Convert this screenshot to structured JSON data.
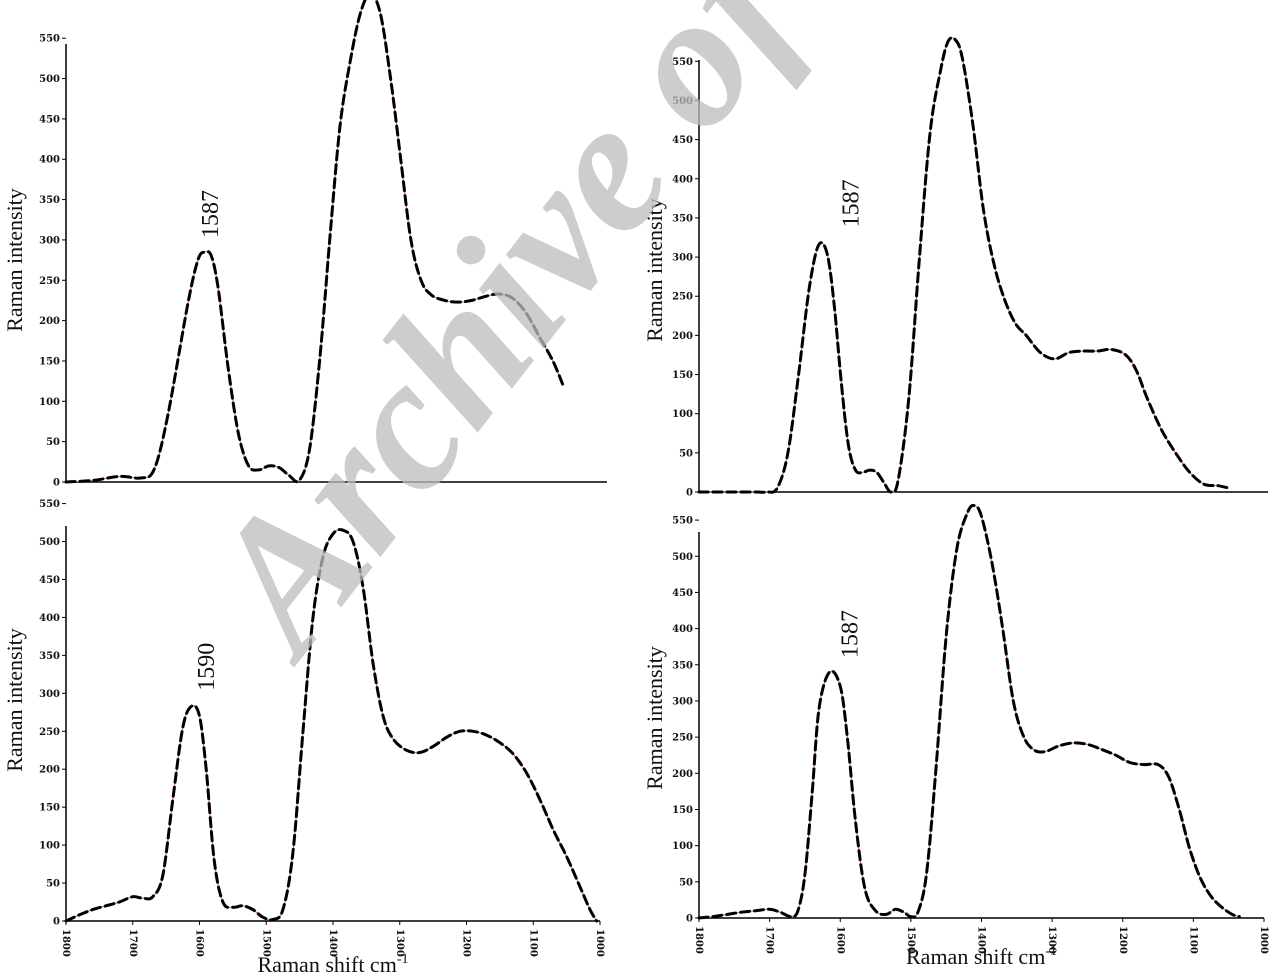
{
  "watermark": "Archive of SID",
  "colors": {
    "line": "#000000",
    "accent": "#e07b7b",
    "watermark": "#bdbdbd"
  },
  "chart_data": [
    {
      "type": "line",
      "panel": "top-left",
      "xlim": [
        1800,
        1000
      ],
      "ylim": [
        0,
        580
      ],
      "ylabel": "Raman intensity",
      "xlabel": "",
      "yticks": [
        0,
        50,
        100,
        150,
        200,
        250,
        300,
        350,
        400,
        450,
        500,
        550
      ],
      "xticks": [],
      "annotation": {
        "text": "1587",
        "x": 1587,
        "y": 285
      },
      "series": [
        {
          "points": [
            [
              1800,
              0
            ],
            [
              1760,
              2
            ],
            [
              1720,
              7
            ],
            [
              1690,
              5
            ],
            [
              1670,
              15
            ],
            [
              1650,
              80
            ],
            [
              1620,
              220
            ],
            [
              1605,
              275
            ],
            [
              1595,
              285
            ],
            [
              1585,
              280
            ],
            [
              1575,
              240
            ],
            [
              1560,
              140
            ],
            [
              1545,
              60
            ],
            [
              1530,
              20
            ],
            [
              1515,
              15
            ],
            [
              1500,
              20
            ],
            [
              1485,
              18
            ],
            [
              1470,
              8
            ],
            [
              1455,
              2
            ],
            [
              1440,
              40
            ],
            [
              1425,
              150
            ],
            [
              1410,
              300
            ],
            [
              1395,
              440
            ],
            [
              1380,
              520
            ],
            [
              1365,
              580
            ],
            [
              1350,
              605
            ],
            [
              1335,
              580
            ],
            [
              1320,
              500
            ],
            [
              1305,
              400
            ],
            [
              1290,
              300
            ],
            [
              1275,
              250
            ],
            [
              1260,
              232
            ],
            [
              1240,
              225
            ],
            [
              1220,
              223
            ],
            [
              1200,
              225
            ],
            [
              1180,
              230
            ],
            [
              1160,
              233
            ],
            [
              1140,
              228
            ],
            [
              1120,
              210
            ],
            [
              1100,
              180
            ],
            [
              1080,
              150
            ],
            [
              1065,
              120
            ]
          ]
        }
      ]
    },
    {
      "type": "line",
      "panel": "bottom-left",
      "xlim": [
        1800,
        1000
      ],
      "ylim": [
        0,
        560
      ],
      "ylabel": "Raman intensity",
      "xlabel": "Raman shift cm",
      "xlabel_sup": "-1",
      "yticks": [
        0,
        50,
        100,
        150,
        200,
        250,
        300,
        350,
        400,
        450,
        500,
        550
      ],
      "xticks": [
        "1800",
        "1700",
        "1600",
        "1500",
        "1400",
        "1300",
        "1200",
        "1100",
        "1000"
      ],
      "annotation": {
        "text": "1590",
        "x": 1590,
        "y": 285
      },
      "series": [
        {
          "points": [
            [
              1800,
              0
            ],
            [
              1780,
              8
            ],
            [
              1760,
              15
            ],
            [
              1740,
              20
            ],
            [
              1720,
              25
            ],
            [
              1700,
              32
            ],
            [
              1685,
              30
            ],
            [
              1670,
              32
            ],
            [
              1655,
              60
            ],
            [
              1640,
              160
            ],
            [
              1625,
              255
            ],
            [
              1612,
              283
            ],
            [
              1600,
              270
            ],
            [
              1590,
              200
            ],
            [
              1578,
              80
            ],
            [
              1565,
              25
            ],
            [
              1550,
              18
            ],
            [
              1535,
              20
            ],
            [
              1520,
              15
            ],
            [
              1505,
              5
            ],
            [
              1490,
              2
            ],
            [
              1475,
              15
            ],
            [
              1460,
              90
            ],
            [
              1445,
              250
            ],
            [
              1430,
              400
            ],
            [
              1415,
              480
            ],
            [
              1400,
              510
            ],
            [
              1385,
              515
            ],
            [
              1370,
              500
            ],
            [
              1355,
              440
            ],
            [
              1340,
              340
            ],
            [
              1325,
              270
            ],
            [
              1310,
              240
            ],
            [
              1290,
              225
            ],
            [
              1270,
              222
            ],
            [
              1250,
              230
            ],
            [
              1230,
              242
            ],
            [
              1210,
              250
            ],
            [
              1190,
              250
            ],
            [
              1170,
              245
            ],
            [
              1150,
              235
            ],
            [
              1130,
              220
            ],
            [
              1110,
              195
            ],
            [
              1090,
              160
            ],
            [
              1070,
              120
            ],
            [
              1050,
              85
            ],
            [
              1030,
              45
            ],
            [
              1015,
              15
            ],
            [
              1005,
              0
            ]
          ]
        }
      ]
    },
    {
      "type": "line",
      "panel": "top-right",
      "xlim": [
        1800,
        1000
      ],
      "ylim": [
        0,
        590
      ],
      "ylabel": "Raman intensity",
      "xlabel": "",
      "yticks": [
        0,
        50,
        100,
        150,
        200,
        250,
        300,
        350,
        400,
        450,
        500,
        550
      ],
      "xticks": [],
      "annotation": {
        "text": "1587",
        "x": 1587,
        "y": 320
      },
      "series": [
        {
          "points": [
            [
              1800,
              0
            ],
            [
              1780,
              0
            ],
            [
              1760,
              0
            ],
            [
              1740,
              0
            ],
            [
              1720,
              0
            ],
            [
              1705,
              0
            ],
            [
              1690,
              5
            ],
            [
              1675,
              50
            ],
            [
              1660,
              150
            ],
            [
              1645,
              260
            ],
            [
              1632,
              315
            ],
            [
              1620,
              305
            ],
            [
              1610,
              240
            ],
            [
              1600,
              140
            ],
            [
              1590,
              60
            ],
            [
              1580,
              28
            ],
            [
              1570,
              25
            ],
            [
              1560,
              28
            ],
            [
              1550,
              25
            ],
            [
              1540,
              12
            ],
            [
              1530,
              0
            ],
            [
              1520,
              15
            ],
            [
              1505,
              120
            ],
            [
              1490,
              300
            ],
            [
              1475,
              460
            ],
            [
              1460,
              540
            ],
            [
              1450,
              575
            ],
            [
              1440,
              578
            ],
            [
              1430,
              555
            ],
            [
              1415,
              470
            ],
            [
              1400,
              360
            ],
            [
              1385,
              290
            ],
            [
              1370,
              245
            ],
            [
              1355,
              215
            ],
            [
              1340,
              200
            ],
            [
              1320,
              178
            ],
            [
              1300,
              170
            ],
            [
              1280,
              178
            ],
            [
              1260,
              180
            ],
            [
              1240,
              180
            ],
            [
              1220,
              182
            ],
            [
              1200,
              175
            ],
            [
              1185,
              155
            ],
            [
              1170,
              120
            ],
            [
              1150,
              80
            ],
            [
              1130,
              50
            ],
            [
              1110,
              25
            ],
            [
              1090,
              10
            ],
            [
              1070,
              8
            ],
            [
              1055,
              5
            ]
          ]
        }
      ]
    },
    {
      "type": "line",
      "panel": "bottom-right",
      "xlim": [
        1800,
        1000
      ],
      "ylim": [
        0,
        575
      ],
      "ylabel": "Raman intensity",
      "xlabel": "Raman shift cm",
      "xlabel_sup": "-1",
      "yticks": [
        0,
        50,
        100,
        150,
        200,
        250,
        300,
        350,
        400,
        450,
        500,
        550
      ],
      "xticks": [
        "1800",
        "1700",
        "1600",
        "1500",
        "1400",
        "1300",
        "1200",
        "1100",
        "1000"
      ],
      "annotation": {
        "text": "1587",
        "x": 1587,
        "y": 340
      },
      "series": [
        {
          "points": [
            [
              1800,
              0
            ],
            [
              1780,
              2
            ],
            [
              1760,
              5
            ],
            [
              1740,
              8
            ],
            [
              1720,
              10
            ],
            [
              1700,
              12
            ],
            [
              1685,
              8
            ],
            [
              1670,
              2
            ],
            [
              1660,
              10
            ],
            [
              1650,
              60
            ],
            [
              1640,
              170
            ],
            [
              1630,
              290
            ],
            [
              1615,
              340
            ],
            [
              1600,
              320
            ],
            [
              1590,
              250
            ],
            [
              1578,
              130
            ],
            [
              1565,
              40
            ],
            [
              1550,
              10
            ],
            [
              1535,
              5
            ],
            [
              1522,
              12
            ],
            [
              1510,
              8
            ],
            [
              1500,
              2
            ],
            [
              1490,
              8
            ],
            [
              1478,
              60
            ],
            [
              1465,
              200
            ],
            [
              1450,
              390
            ],
            [
              1435,
              510
            ],
            [
              1420,
              560
            ],
            [
              1410,
              570
            ],
            [
              1400,
              555
            ],
            [
              1385,
              490
            ],
            [
              1370,
              400
            ],
            [
              1355,
              300
            ],
            [
              1340,
              250
            ],
            [
              1325,
              232
            ],
            [
              1310,
              230
            ],
            [
              1290,
              238
            ],
            [
              1270,
              242
            ],
            [
              1250,
              240
            ],
            [
              1230,
              233
            ],
            [
              1210,
              225
            ],
            [
              1190,
              215
            ],
            [
              1170,
              212
            ],
            [
              1150,
              212
            ],
            [
              1135,
              195
            ],
            [
              1120,
              150
            ],
            [
              1105,
              95
            ],
            [
              1090,
              55
            ],
            [
              1075,
              30
            ],
            [
              1060,
              15
            ],
            [
              1045,
              5
            ],
            [
              1035,
              2
            ]
          ]
        }
      ]
    }
  ]
}
